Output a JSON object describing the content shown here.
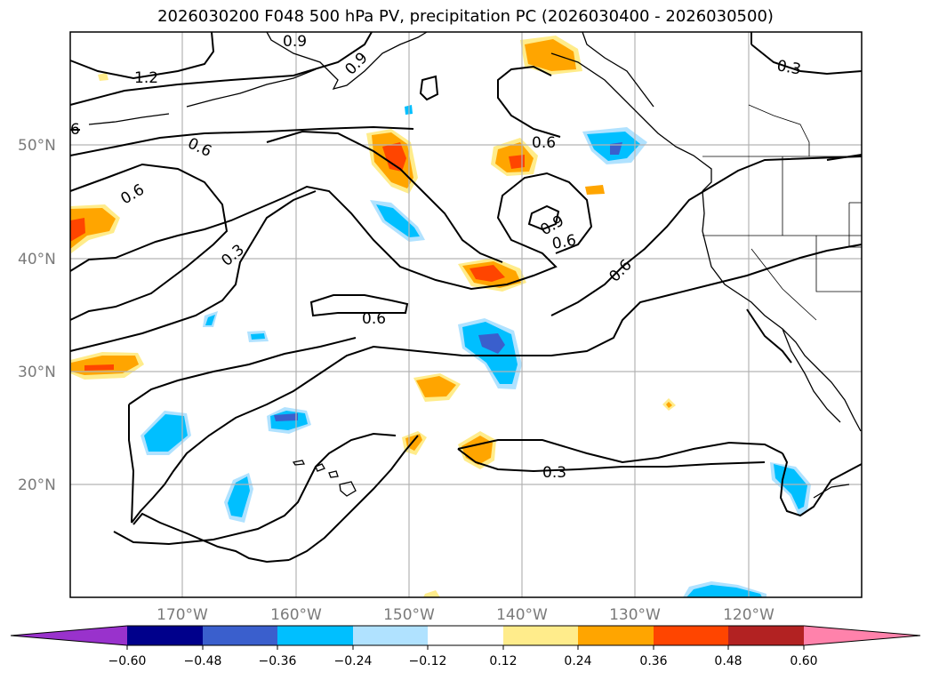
{
  "title": "2026030200 F048 500 hPa PV, precipitation PC (2026030400 - 2026030500)",
  "latitude_labels": [
    "50°N",
    "40°N",
    "30°N",
    "20°N"
  ],
  "longitude_labels": [
    "170°W",
    "160°W",
    "150°W",
    "140°W",
    "130°W",
    "120°W"
  ],
  "pv_contour_labels": [
    "1.2",
    "6",
    "0.6",
    "0.6",
    "0.3",
    "0.6",
    "0.9",
    "0.6",
    "0.6",
    "0.6",
    "0.3",
    "0.3",
    "0.9",
    "0.9"
  ],
  "colorbar": {
    "ticks": [
      "−0.60",
      "−0.48",
      "−0.36",
      "−0.24",
      "−0.12",
      "0.12",
      "0.24",
      "0.36",
      "0.48",
      "0.60"
    ],
    "colors": [
      "#9932cc",
      "#00008b",
      "#3a5fcd",
      "#00bfff",
      "#b0e2ff",
      "#ffffff",
      "#ffec8b",
      "#ffa500",
      "#ff4500",
      "#b22222",
      "#ff82ab"
    ]
  },
  "precip_colors": {
    "light_blue": "#b0e2ff",
    "blue": "#00bfff",
    "dark_blue": "#3a5fcd",
    "yellow": "#ffec8b",
    "orange": "#ffa500",
    "red_orange": "#ff4500"
  }
}
